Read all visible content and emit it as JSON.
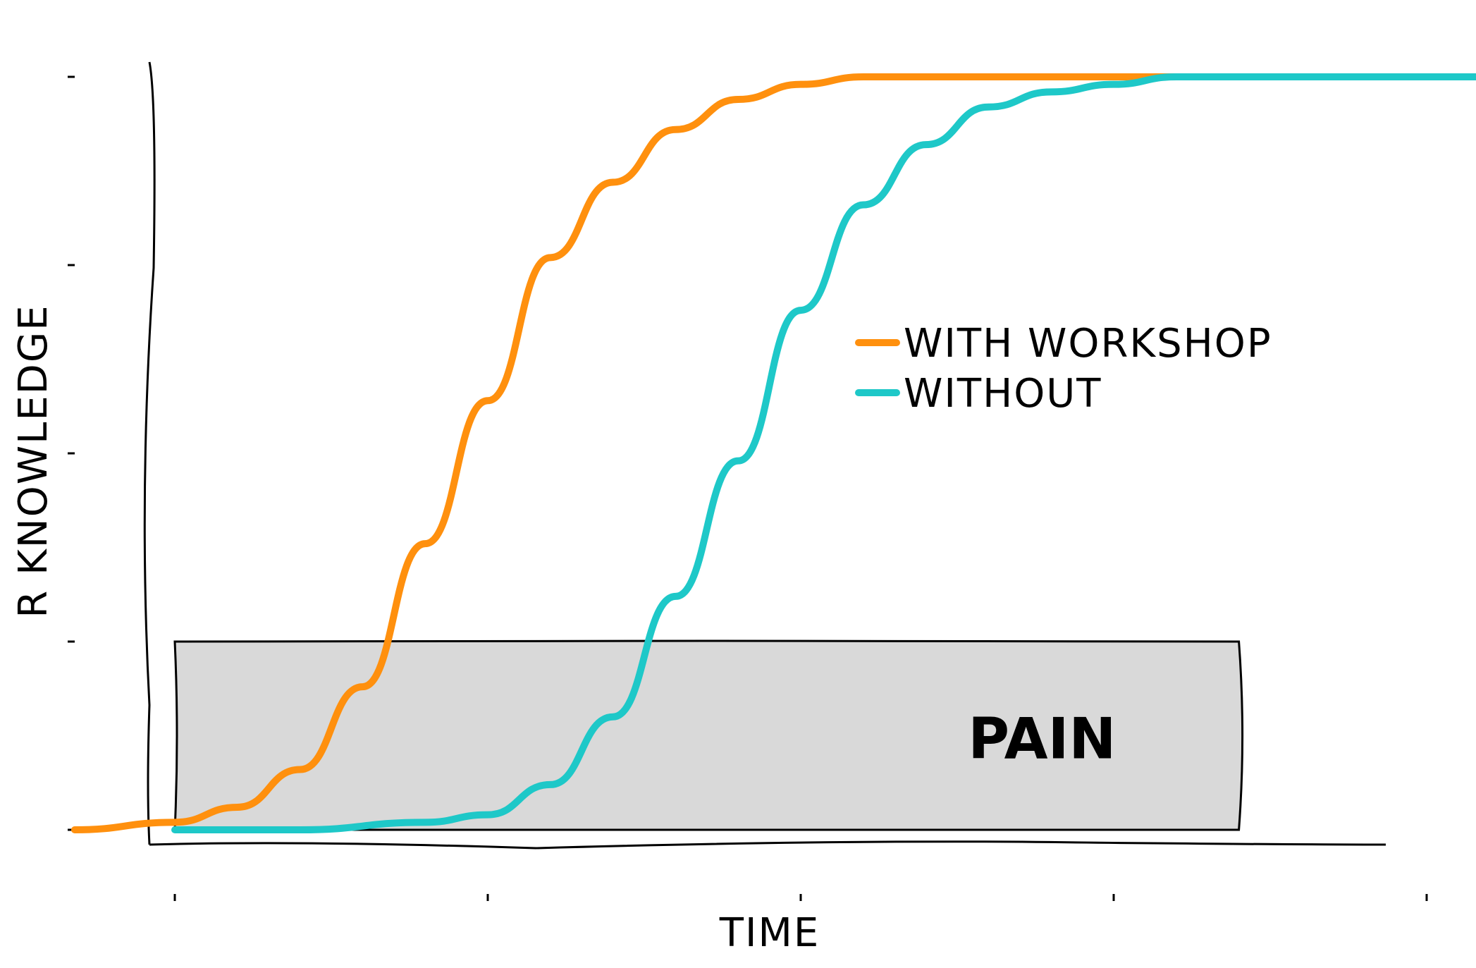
{
  "chart_data": {
    "type": "line",
    "title": "",
    "xlabel": "TIME",
    "ylabel": "R KNOWLEDGE",
    "x_ticks": 5,
    "y_ticks": 5,
    "xlim": [
      0,
      1
    ],
    "ylim": [
      0,
      1
    ],
    "grid": false,
    "legend_position": "right",
    "series": [
      {
        "name": "WITH WORKSHOP",
        "color": "#ff900e",
        "x": [
          -0.08,
          0.0,
          0.05,
          0.1,
          0.15,
          0.2,
          0.25,
          0.3,
          0.35,
          0.4,
          0.45,
          0.5,
          0.55,
          0.6,
          0.65,
          0.7,
          0.8,
          1.0,
          1.3
        ],
        "y": [
          0.0,
          0.01,
          0.03,
          0.08,
          0.19,
          0.38,
          0.57,
          0.76,
          0.86,
          0.93,
          0.97,
          0.99,
          1.0,
          1.0,
          1.0,
          1.0,
          1.0,
          1.0,
          1.0
        ]
      },
      {
        "name": "WITHOUT",
        "color": "#1ec8c8",
        "x": [
          0.0,
          0.1,
          0.2,
          0.25,
          0.3,
          0.35,
          0.4,
          0.45,
          0.5,
          0.55,
          0.6,
          0.65,
          0.7,
          0.75,
          0.8,
          0.9,
          1.0,
          1.3
        ],
        "y": [
          0.0,
          0.0,
          0.01,
          0.02,
          0.06,
          0.15,
          0.31,
          0.49,
          0.69,
          0.83,
          0.91,
          0.96,
          0.98,
          0.99,
          1.0,
          1.0,
          1.0,
          1.0
        ]
      }
    ],
    "annotations": [
      {
        "type": "rect",
        "label": "PAIN",
        "x": [
          0.0,
          0.85
        ],
        "y": [
          0.0,
          0.25
        ],
        "color": "#d9d9d9"
      }
    ]
  }
}
